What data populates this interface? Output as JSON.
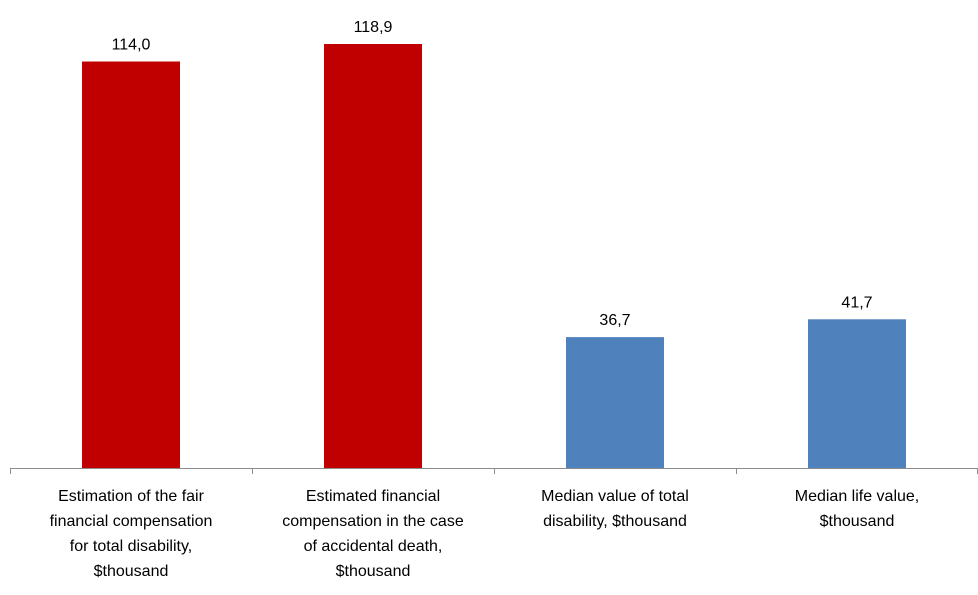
{
  "chart_data": {
    "type": "bar",
    "categories": [
      "Estimation of the fair financial compensation for total disability, $thousand",
      "Estimated financial compensation in the case of accidental death, $thousand",
      "Median value of total disability, $thousand",
      "Median life value, $thousand"
    ],
    "category_lines": [
      [
        "Estimation of the fair",
        "financial compensation",
        "for total disability,",
        "$thousand"
      ],
      [
        "Estimated financial",
        "compensation in the case",
        "of accidental death,",
        "$thousand"
      ],
      [
        "Median value of total",
        "disability, $thousand"
      ],
      [
        "Median life value,",
        "$thousand"
      ]
    ],
    "values": [
      114.0,
      118.9,
      36.7,
      41.7
    ],
    "data_labels": [
      "114,0",
      "118,9",
      "36,7",
      "41,7"
    ],
    "bar_colors": [
      "#c00000",
      "#c00000",
      "#4f81bd",
      "#4f81bd"
    ],
    "ylim": [
      0,
      130
    ],
    "grid": false,
    "legend": "none"
  }
}
